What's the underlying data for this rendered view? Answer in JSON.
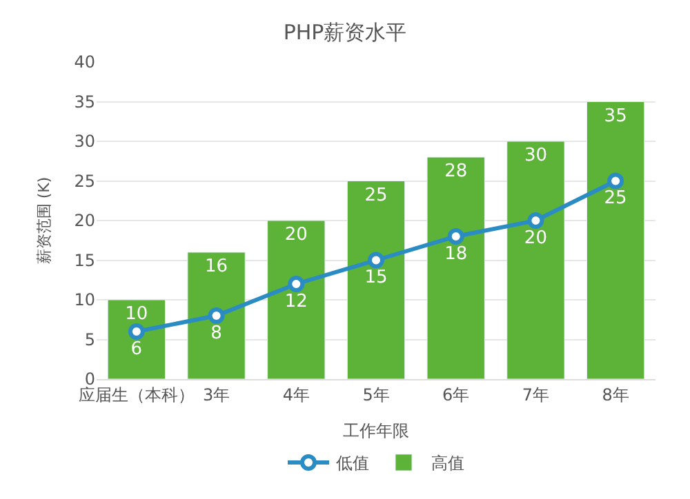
{
  "chart_data": {
    "type": "bar",
    "title": "PHP薪资水平",
    "xlabel": "工作年限",
    "ylabel": "薪资范围 (K)",
    "categories": [
      "应届生（本科）",
      "3年",
      "4年",
      "5年",
      "6年",
      "7年",
      "8年"
    ],
    "series": [
      {
        "name": "低值",
        "type": "line",
        "color": "#2b8cc4",
        "values": [
          6,
          8,
          12,
          15,
          18,
          20,
          25
        ],
        "marker": "circle"
      },
      {
        "name": "高值",
        "color": "#5cb338",
        "values": [
          10,
          16,
          20,
          25,
          28,
          30,
          35
        ]
      }
    ],
    "ylim": [
      0,
      40
    ],
    "yticks": [
      0,
      5,
      10,
      15,
      20,
      25,
      30,
      35,
      40
    ],
    "grid": "y",
    "legend": "bottom",
    "data_labels": true
  }
}
